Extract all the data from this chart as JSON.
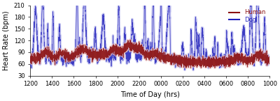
{
  "xlabel": "Time of Day (hrs)",
  "ylabel": "Heart Rate (bpm)",
  "ylim": [
    30,
    210
  ],
  "yticks": [
    30,
    60,
    90,
    120,
    150,
    180,
    210
  ],
  "xtick_labels": [
    "1200",
    "1400",
    "1600",
    "1800",
    "2000",
    "2200",
    "0000",
    "0200",
    "0400",
    "0600",
    "0800",
    "1000"
  ],
  "human_color": "#8B1010",
  "dog_color": "#2222BB",
  "human_halo_color": "#E8BBBB",
  "dog_halo_color": "#BBBBEE",
  "background_color": "#FFFFFF",
  "legend_human": "Human",
  "legend_dog": "Dog",
  "figsize": [
    4.0,
    1.45
  ],
  "dpi": 100,
  "n_points": 4000
}
